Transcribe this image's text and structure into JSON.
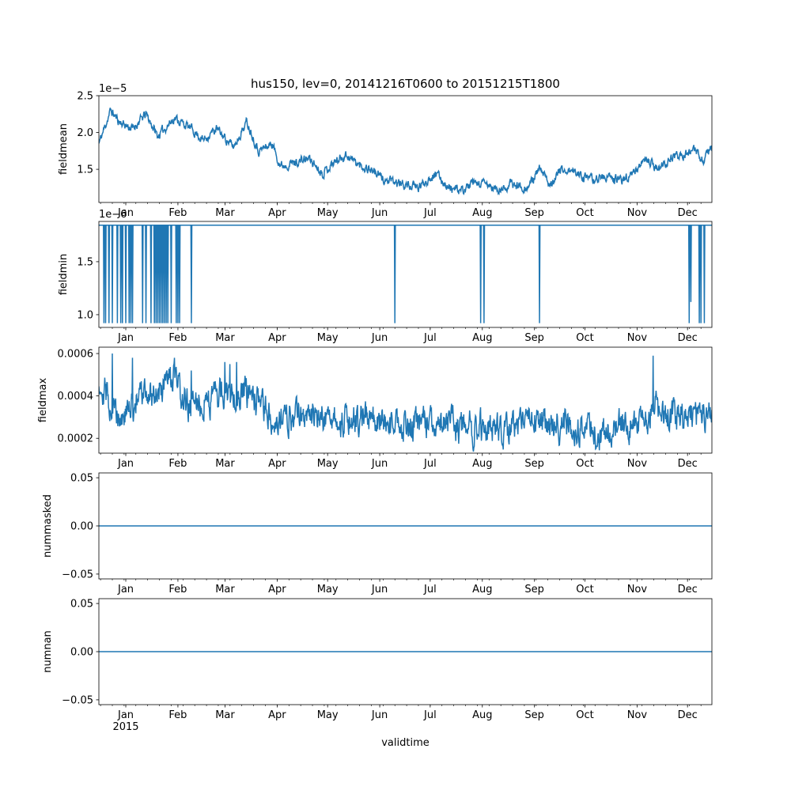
{
  "chart_data": {
    "type": "line",
    "title": "hus150, lev=0, 20141216T0600 to 20151215T1800",
    "xlabel": "validtime",
    "series_color": "#1f77b4",
    "x_axis": {
      "start": "2014-12-16T06:00",
      "end": "2015-12-15T18:00",
      "tick_labels": [
        "Jan",
        "Feb",
        "Mar",
        "Apr",
        "May",
        "Jun",
        "Jul",
        "Aug",
        "Sep",
        "Oct",
        "Nov",
        "Dec"
      ],
      "tick_days": [
        16,
        47,
        75,
        106,
        136,
        167,
        197,
        228,
        259,
        289,
        320,
        350
      ],
      "range_days": [
        0,
        364.5
      ],
      "year_label": "2015"
    },
    "panels": [
      {
        "ylabel": "fieldmean",
        "offset_text": "1e−5",
        "ylim": [
          1.05,
          2.5
        ],
        "yticks": [
          1.5,
          2.0,
          2.5
        ],
        "ytick_labels": [
          "1.5",
          "2.0",
          "2.5"
        ],
        "description": "daily-varying mean, scaled by 1e-5",
        "anchors": [
          [
            0,
            1.85
          ],
          [
            7,
            2.3
          ],
          [
            12,
            2.15
          ],
          [
            20,
            2.05
          ],
          [
            28,
            2.25
          ],
          [
            35,
            1.95
          ],
          [
            45,
            2.2
          ],
          [
            55,
            2.05
          ],
          [
            62,
            1.9
          ],
          [
            70,
            2.05
          ],
          [
            80,
            1.8
          ],
          [
            88,
            2.15
          ],
          [
            95,
            1.75
          ],
          [
            103,
            1.85
          ],
          [
            108,
            1.55
          ],
          [
            118,
            1.6
          ],
          [
            125,
            1.65
          ],
          [
            133,
            1.45
          ],
          [
            140,
            1.6
          ],
          [
            147,
            1.7
          ],
          [
            155,
            1.55
          ],
          [
            162,
            1.5
          ],
          [
            170,
            1.35
          ],
          [
            180,
            1.3
          ],
          [
            190,
            1.25
          ],
          [
            200,
            1.45
          ],
          [
            208,
            1.25
          ],
          [
            215,
            1.2
          ],
          [
            222,
            1.3
          ],
          [
            230,
            1.3
          ],
          [
            238,
            1.2
          ],
          [
            245,
            1.3
          ],
          [
            255,
            1.25
          ],
          [
            262,
            1.5
          ],
          [
            268,
            1.3
          ],
          [
            275,
            1.5
          ],
          [
            285,
            1.45
          ],
          [
            292,
            1.35
          ],
          [
            300,
            1.4
          ],
          [
            310,
            1.35
          ],
          [
            318,
            1.45
          ],
          [
            325,
            1.65
          ],
          [
            333,
            1.5
          ],
          [
            340,
            1.65
          ],
          [
            348,
            1.7
          ],
          [
            355,
            1.75
          ],
          [
            360,
            1.6
          ],
          [
            364.5,
            1.85
          ]
        ],
        "noise": 0.05,
        "seed": 11
      },
      {
        "ylabel": "fieldmin",
        "offset_text": "1e−6",
        "ylim": [
          0.88,
          1.88
        ],
        "yticks": [
          1.0,
          1.5
        ],
        "ytick_labels": [
          "1.0",
          "1.5"
        ],
        "baseline": 1.845,
        "dip_value": 0.92,
        "dip_days": [
          3,
          4,
          6,
          8,
          11,
          13,
          14,
          16,
          18,
          19,
          20,
          26,
          28,
          31,
          33,
          34,
          35,
          36,
          37,
          38,
          39,
          40,
          41,
          43,
          46,
          47,
          48,
          55,
          176,
          227,
          229,
          262,
          351,
          352,
          357,
          358,
          360
        ],
        "special_dip": {
          "day": 352,
          "value": 1.12
        }
      },
      {
        "ylabel": "fieldmax",
        "offset_text": "",
        "ylim": [
          0.00013,
          0.00063
        ],
        "yticks": [
          0.0002,
          0.0004,
          0.0006
        ],
        "ytick_labels": [
          "0.0002",
          "0.0004",
          "0.0006"
        ],
        "anchors": [
          [
            0,
            0.00048
          ],
          [
            8,
            0.00035
          ],
          [
            15,
            0.0003
          ],
          [
            25,
            0.0004
          ],
          [
            35,
            0.00042
          ],
          [
            45,
            0.00048
          ],
          [
            52,
            0.00035
          ],
          [
            60,
            0.00037
          ],
          [
            70,
            0.0004
          ],
          [
            80,
            0.00042
          ],
          [
            90,
            0.0004
          ],
          [
            100,
            0.00032
          ],
          [
            110,
            0.00028
          ],
          [
            120,
            0.00032
          ],
          [
            130,
            0.00031
          ],
          [
            140,
            0.0003
          ],
          [
            150,
            0.00028
          ],
          [
            160,
            0.0003
          ],
          [
            170,
            0.00027
          ],
          [
            180,
            0.00025
          ],
          [
            190,
            0.00027
          ],
          [
            200,
            0.00028
          ],
          [
            210,
            0.00026
          ],
          [
            220,
            0.00025
          ],
          [
            230,
            0.00025
          ],
          [
            240,
            0.00024
          ],
          [
            250,
            0.00026
          ],
          [
            260,
            0.00028
          ],
          [
            270,
            0.00025
          ],
          [
            280,
            0.00026
          ],
          [
            290,
            0.00025
          ],
          [
            300,
            0.00021
          ],
          [
            310,
            0.00026
          ],
          [
            320,
            0.00027
          ],
          [
            330,
            0.00034
          ],
          [
            340,
            0.0003
          ],
          [
            350,
            0.00031
          ],
          [
            360,
            0.00032
          ],
          [
            364.5,
            0.00033
          ]
        ],
        "noise": 6e-05,
        "spikes": [
          [
            8,
            0.0006
          ],
          [
            20,
            0.00058
          ],
          [
            45,
            0.00058
          ],
          [
            55,
            0.00052
          ],
          [
            75,
            0.00056
          ],
          [
            78,
            0.00055
          ],
          [
            82,
            0.00056
          ],
          [
            330,
            0.00059
          ]
        ],
        "seed": 29
      },
      {
        "ylabel": "nummasked",
        "offset_text": "",
        "ylim": [
          -0.055,
          0.055
        ],
        "yticks": [
          -0.05,
          0.0,
          0.05
        ],
        "ytick_labels": [
          "−0.05",
          "0.00",
          "0.05"
        ],
        "constant": 0.0
      },
      {
        "ylabel": "numnan",
        "offset_text": "",
        "ylim": [
          -0.055,
          0.055
        ],
        "yticks": [
          -0.05,
          0.0,
          0.05
        ],
        "ytick_labels": [
          "−0.05",
          "0.00",
          "0.05"
        ],
        "constant": 0.0
      }
    ]
  }
}
